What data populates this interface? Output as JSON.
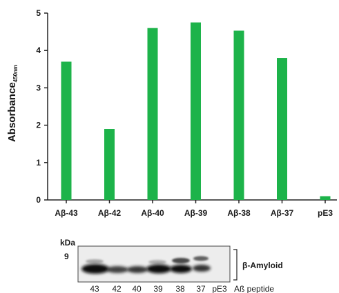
{
  "chart_data": {
    "type": "bar",
    "categories": [
      "Aβ-43",
      "Aβ-42",
      "Aβ-40",
      "Aβ-39",
      "Aβ-38",
      "Aβ-37",
      "pE3"
    ],
    "values": [
      3.7,
      1.9,
      4.6,
      4.75,
      4.53,
      3.8,
      0.1
    ],
    "ylabel": "Absorbance",
    "ylabel_subscript": "450nm",
    "ylim": [
      0,
      5
    ],
    "yticks": [
      "0",
      "1",
      "2",
      "3",
      "4",
      "5"
    ],
    "bar_color": "#1db34a",
    "grid": false
  },
  "blot": {
    "unit_label": "kDa",
    "marker_label": "9",
    "band_label": "β-Amyloid",
    "lanes": [
      "43",
      "42",
      "40",
      "39",
      "38",
      "37",
      "pE3"
    ],
    "axis_caption": "Aß peptide"
  }
}
